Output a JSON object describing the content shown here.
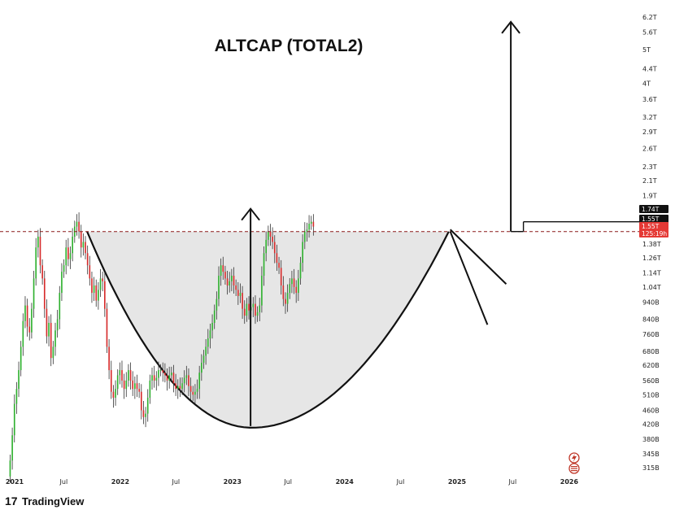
{
  "chart_data": {
    "type": "candlestick",
    "title": "ALTCAP (TOTAL2)",
    "y_scale": "log",
    "ylim": [
      300000000000,
      6500000000000
    ],
    "y_ticks": [
      {
        "label": "6.2T",
        "value": 6200000000000.0
      },
      {
        "label": "5.6T",
        "value": 5600000000000.0
      },
      {
        "label": "5T",
        "value": 5000000000000.0
      },
      {
        "label": "4.4T",
        "value": 4400000000000.0
      },
      {
        "label": "4T",
        "value": 4000000000000.0
      },
      {
        "label": "3.6T",
        "value": 3600000000000.0
      },
      {
        "label": "3.2T",
        "value": 3200000000000.0
      },
      {
        "label": "2.9T",
        "value": 2900000000000.0
      },
      {
        "label": "2.6T",
        "value": 2600000000000.0
      },
      {
        "label": "2.3T",
        "value": 2300000000000.0
      },
      {
        "label": "2.1T",
        "value": 2100000000000.0
      },
      {
        "label": "1.9T",
        "value": 1900000000000.0
      },
      {
        "label": "1.38T",
        "value": 1380000000000.0
      },
      {
        "label": "1.26T",
        "value": 1260000000000.0
      },
      {
        "label": "1.14T",
        "value": 1140000000000.0
      },
      {
        "label": "1.04T",
        "value": 1040000000000.0
      },
      {
        "label": "940B",
        "value": 940000000000.0
      },
      {
        "label": "840B",
        "value": 840000000000.0
      },
      {
        "label": "760B",
        "value": 760000000000.0
      },
      {
        "label": "680B",
        "value": 680000000000.0
      },
      {
        "label": "620B",
        "value": 620000000000.0
      },
      {
        "label": "560B",
        "value": 560000000000.0
      },
      {
        "label": "510B",
        "value": 510000000000.0
      },
      {
        "label": "460B",
        "value": 460000000000.0
      },
      {
        "label": "420B",
        "value": 420000000000.0
      },
      {
        "label": "380B",
        "value": 380000000000.0
      },
      {
        "label": "345B",
        "value": 345000000000.0
      },
      {
        "label": "315B",
        "value": 315000000000.0
      }
    ],
    "price_labels": [
      {
        "label": "1.74T",
        "value": 1740000000000.0,
        "color": "#111111"
      },
      {
        "label": "1.55T",
        "value": 1550000000000.0,
        "color": "#111111"
      },
      {
        "label": "1.55T",
        "value": 1550000000000.0,
        "color": "#e53935"
      },
      {
        "label": "125:19h",
        "value": 1490000000000.0,
        "color": "#e53935"
      }
    ],
    "xlim": [
      "2021-01-01",
      "2026-08-01"
    ],
    "x_ticks": [
      {
        "label": "2021",
        "date": "2021-01-01"
      },
      {
        "label": "Jul",
        "date": "2021-07-01"
      },
      {
        "label": "2022",
        "date": "2022-01-01"
      },
      {
        "label": "Jul",
        "date": "2022-07-01"
      },
      {
        "label": "2023",
        "date": "2023-01-01"
      },
      {
        "label": "Jul",
        "date": "2023-07-01"
      },
      {
        "label": "2024",
        "date": "2024-01-01"
      },
      {
        "label": "Jul",
        "date": "2024-07-01"
      },
      {
        "label": "2025",
        "date": "2025-01-01"
      },
      {
        "label": "Jul",
        "date": "2025-07-01"
      },
      {
        "label": "2026",
        "date": "2026-01-01"
      }
    ],
    "interval": "weekly",
    "start_date": "2021-01-04",
    "closes": [
      330000000000.0,
      390000000000.0,
      480000000000.0,
      530000000000.0,
      600000000000.0,
      700000000000.0,
      830000000000.0,
      920000000000.0,
      800000000000.0,
      770000000000.0,
      900000000000.0,
      1100000000000.0,
      1350000000000.0,
      1450000000000.0,
      1200000000000.0,
      1100000000000.0,
      900000000000.0,
      750000000000.0,
      820000000000.0,
      650000000000.0,
      700000000000.0,
      780000000000.0,
      840000000000.0,
      1000000000000.0,
      1150000000000.0,
      1200000000000.0,
      1350000000000.0,
      1250000000000.0,
      1300000000000.0,
      1450000000000.0,
      1550000000000.0,
      1600000000000.0,
      1500000000000.0,
      1350000000000.0,
      1400000000000.0,
      1300000000000.0,
      1200000000000.0,
      1100000000000.0,
      1000000000000.0,
      1050000000000.0,
      950000000000.0,
      1020000000000.0,
      1100000000000.0,
      1080000000000.0,
      900000000000.0,
      700000000000.0,
      600000000000.0,
      520000000000.0,
      500000000000.0,
      530000000000.0,
      580000000000.0,
      600000000000.0,
      560000000000.0,
      530000000000.0,
      560000000000.0,
      600000000000.0,
      560000000000.0,
      530000000000.0,
      550000000000.0,
      530000000000.0,
      520000000000.0,
      460000000000.0,
      440000000000.0,
      450000000000.0,
      500000000000.0,
      560000000000.0,
      580000000000.0,
      560000000000.0,
      570000000000.0,
      600000000000.0,
      600000000000.0,
      590000000000.0,
      580000000000.0,
      560000000000.0,
      580000000000.0,
      590000000000.0,
      550000000000.0,
      530000000000.0,
      540000000000.0,
      530000000000.0,
      550000000000.0,
      570000000000.0,
      580000000000.0,
      540000000000.0,
      520000000000.0,
      510000000000.0,
      520000000000.0,
      530000000000.0,
      590000000000.0,
      630000000000.0,
      660000000000.0,
      700000000000.0,
      740000000000.0,
      780000000000.0,
      820000000000.0,
      890000000000.0,
      960000000000.0,
      1120000000000.0,
      1200000000000.0,
      1150000000000.0,
      1100000000000.0,
      1050000000000.0,
      1080000000000.0,
      1120000000000.0,
      1050000000000.0,
      1020000000000.0,
      980000000000.0,
      1000000000000.0,
      900000000000.0,
      860000000000.0,
      930000000000.0,
      890000000000.0,
      910000000000.0,
      930000000000.0,
      860000000000.0,
      880000000000.0,
      920000000000.0,
      1120000000000.0,
      1300000000000.0,
      1420000000000.0,
      1500000000000.0,
      1450000000000.0,
      1400000000000.0,
      1300000000000.0,
      1220000000000.0,
      1180000000000.0,
      1050000000000.0,
      960000000000.0,
      930000000000.0,
      1000000000000.0,
      1060000000000.0,
      1100000000000.0,
      1040000000000.0,
      1000000000000.0,
      1100000000000.0,
      1220000000000.0,
      1400000000000.0,
      1500000000000.0,
      1520000000000.0,
      1580000000000.0,
      1600000000000.0,
      1550000000000.0
    ]
  },
  "annotations": {
    "resistance": 1500000000000.0,
    "arrow_top": 6000000000000.0,
    "cup_bottom": 410000000000.0,
    "upper_line": {
      "start": 1500000000000.0,
      "end": 1600000000000.0
    },
    "tl1": {
      "from": [
        "2024-12-10",
        1520000000000.0
      ],
      "to": [
        "2025-06-10",
        1060000000000.0
      ]
    },
    "tl2": {
      "from": [
        "2024-12-10",
        1500000000000.0
      ],
      "to": [
        "2025-04-10",
        810000000000.0
      ]
    }
  },
  "footer": {
    "brand": "TradingView",
    "logo_text": "17"
  },
  "colors": {
    "up": "#2fb02f",
    "down": "#d62b2b",
    "wick": "#333333",
    "cup_fill": "#e6e6e6",
    "line": "#111111",
    "dash": "#8b1a1a",
    "price_red": "#e53935"
  }
}
